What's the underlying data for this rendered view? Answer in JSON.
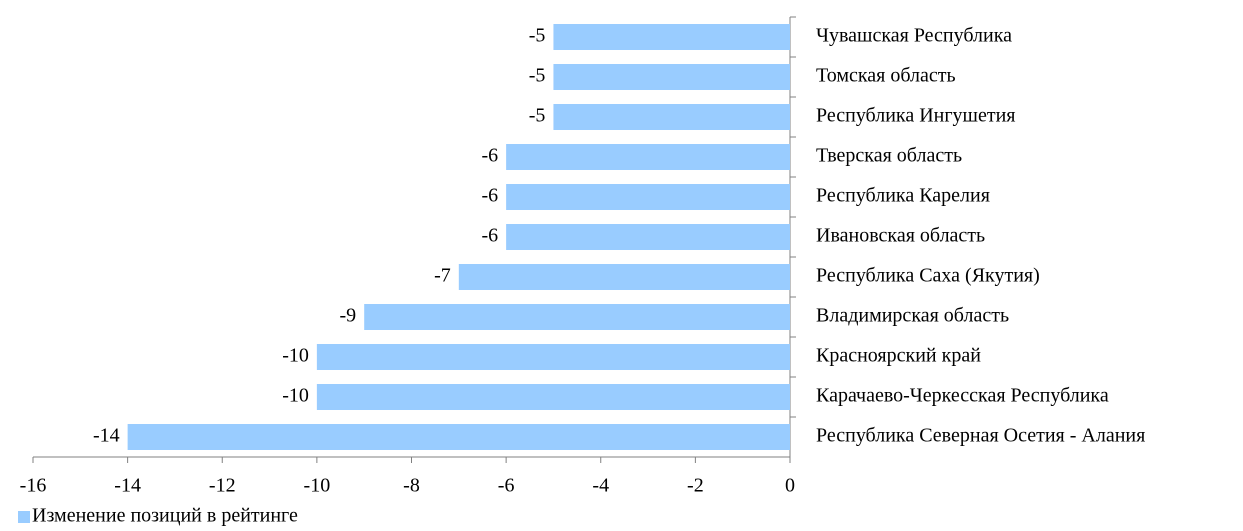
{
  "chart_data": {
    "type": "bar",
    "orientation": "horizontal",
    "categories": [
      "Чувашская Республика",
      "Томская область",
      "Республика Ингушетия",
      "Тверская область",
      "Республика Карелия",
      "Ивановская область",
      "Республика Саха (Якутия)",
      "Владимирская область",
      "Красноярский край",
      "Карачаево-Черкесская Республика",
      "Республика Северная Осетия - Алания"
    ],
    "series": [
      {
        "name": "Изменение позиций в рейтинге",
        "color": "#99ccff",
        "values": [
          -5,
          -5,
          -5,
          -6,
          -6,
          -6,
          -7,
          -9,
          -10,
          -10,
          -14
        ]
      }
    ],
    "xlim": [
      -16,
      0
    ],
    "xticks": [
      -16,
      -14,
      -12,
      -10,
      -8,
      -6,
      -4,
      -2,
      0
    ],
    "legend": "bottom-left"
  }
}
